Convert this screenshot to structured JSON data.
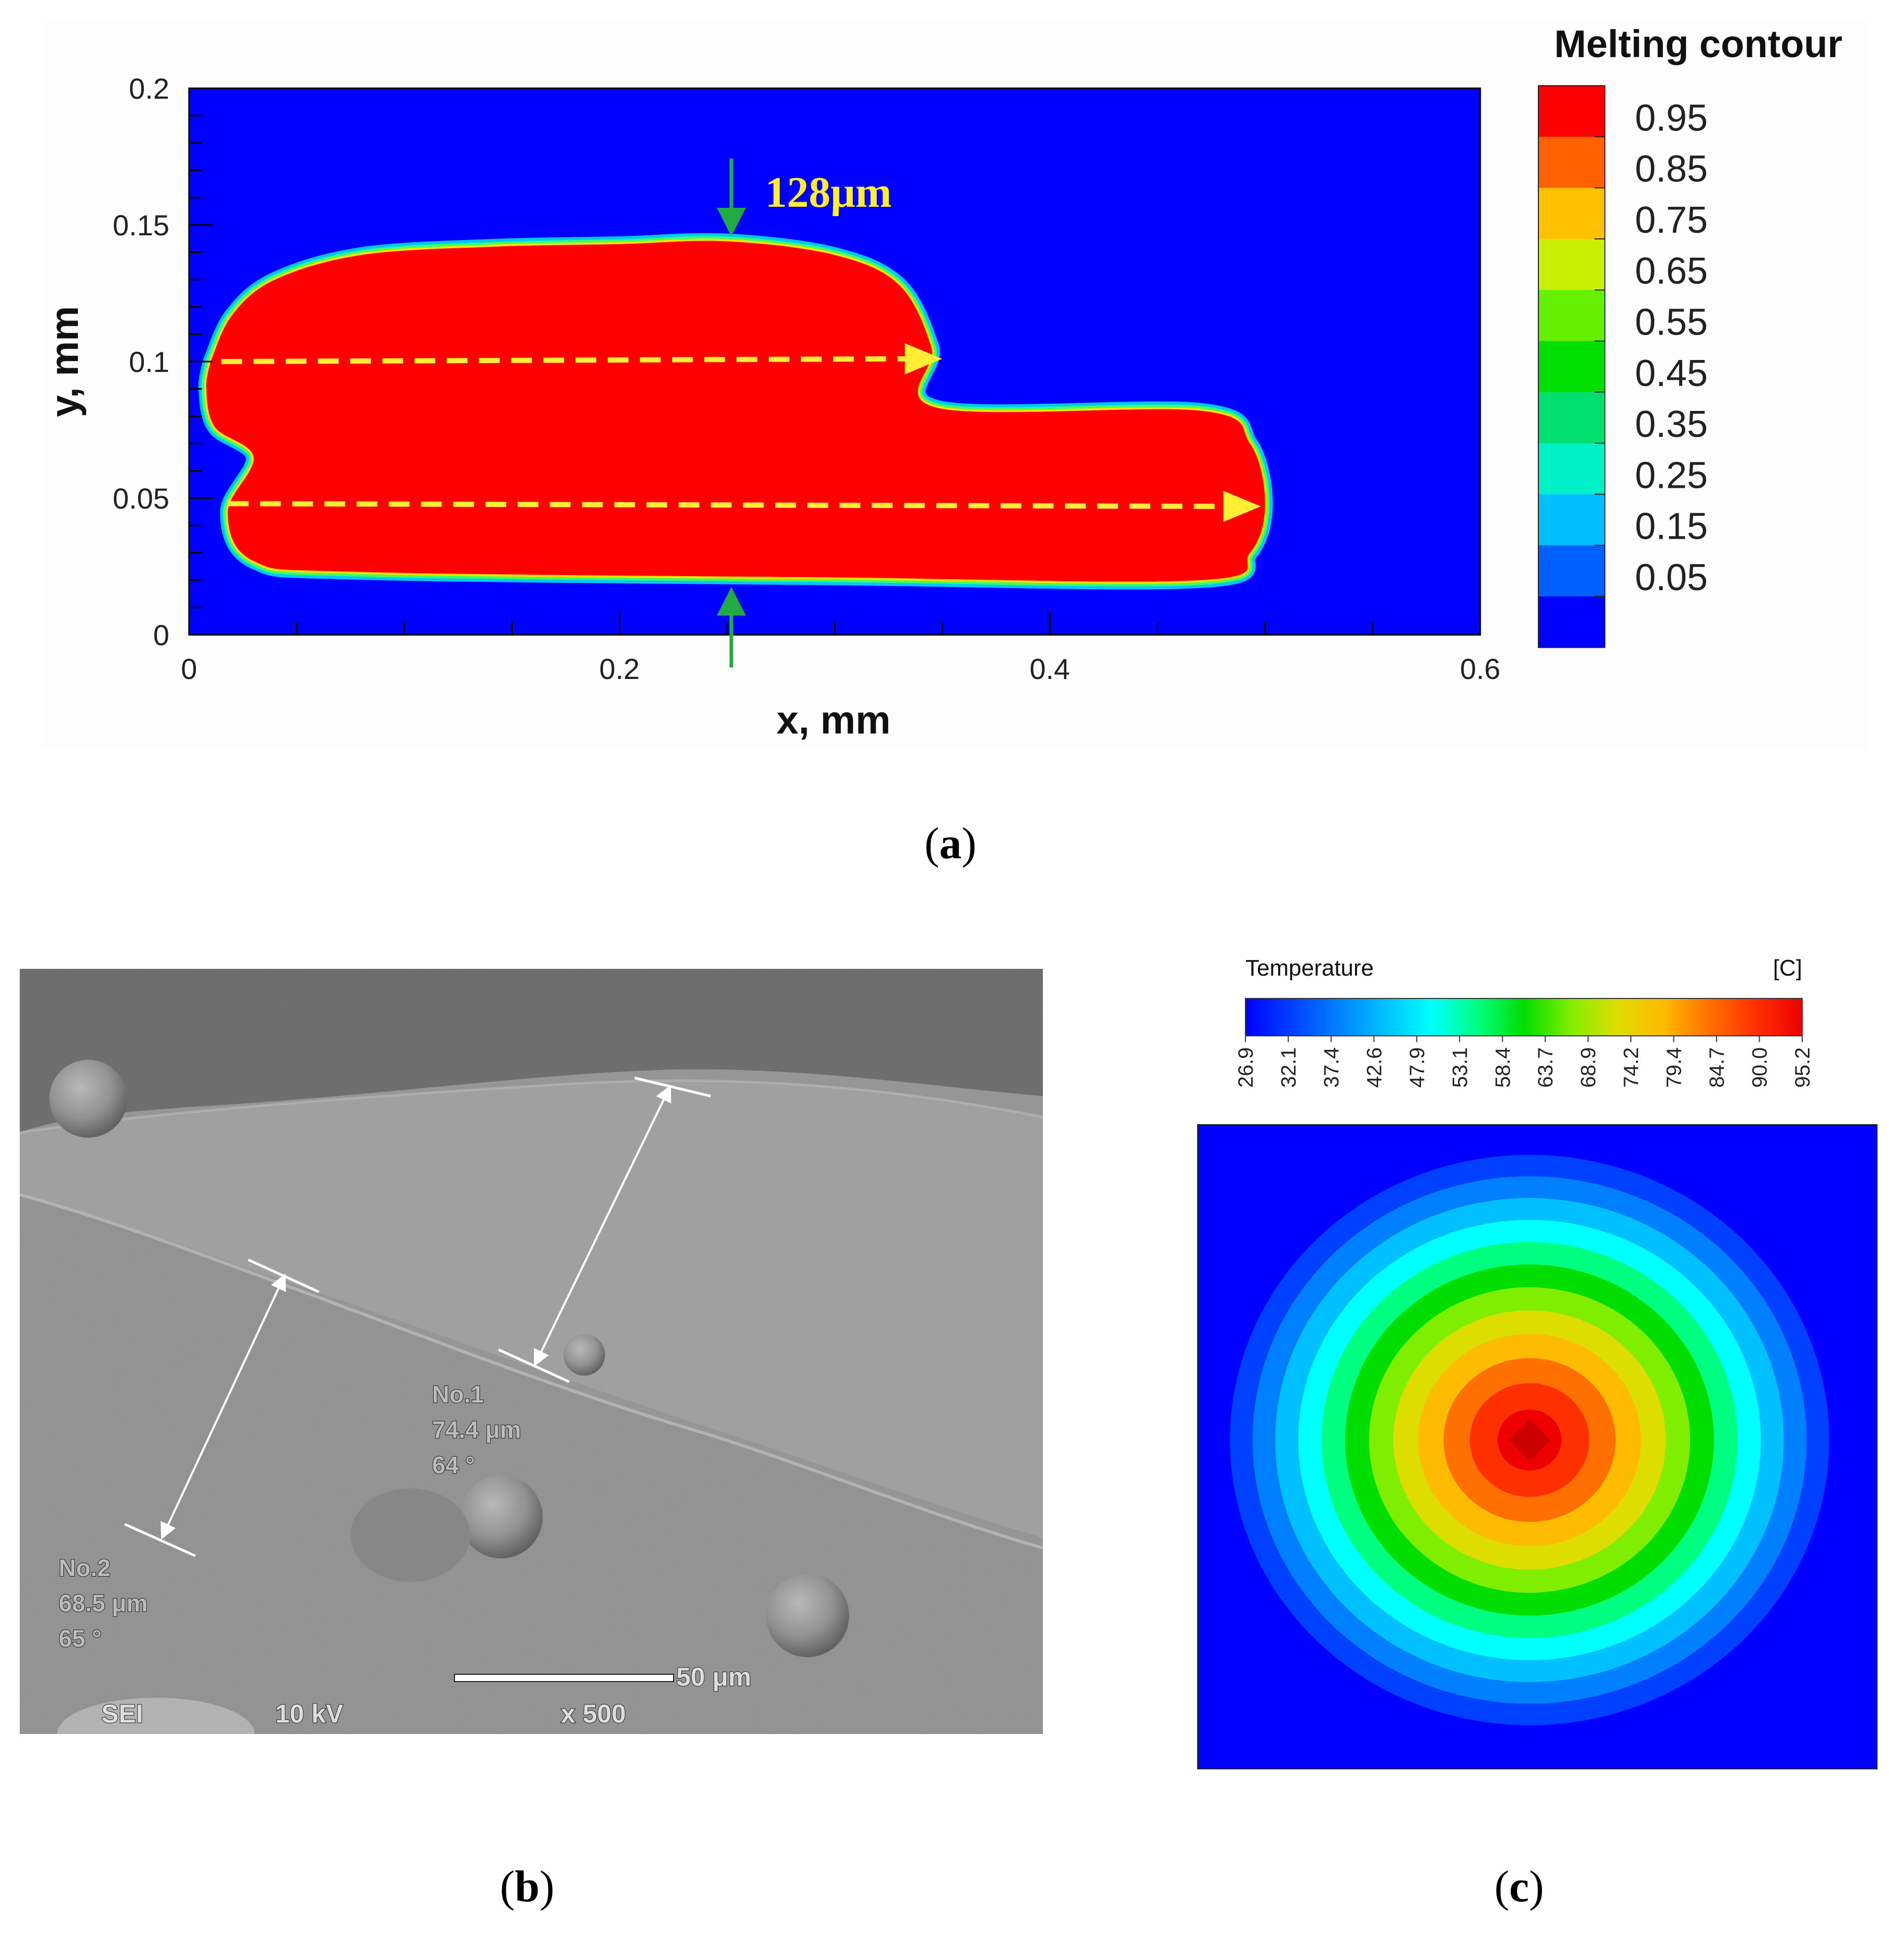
{
  "panel_a": {
    "caption_letter": "a",
    "legend_title": "Melting contour",
    "annotation": "128μm",
    "colors": {
      "background": "#0000ff",
      "melt": "#ff0000",
      "scan_arrow": "#ffee33",
      "marker_arrow": "#22aa44"
    }
  },
  "panel_b": {
    "caption_letter": "b",
    "labels": {
      "m1_name": "No.1",
      "m1_length": "74.4 μm",
      "m1_angle": "64 °",
      "m2_name": "No.2",
      "m2_length": "68.5 μm",
      "m2_angle": "65 °",
      "scale": "50 μm",
      "mode": "SEI",
      "voltage": "10 kV",
      "magnification": "x 500"
    }
  },
  "panel_c": {
    "caption_letter": "c",
    "colorbar_title": "Temperature",
    "colorbar_unit": "[C]"
  },
  "chart_data": [
    {
      "type": "heatmap",
      "title": "",
      "xlabel": "x, mm",
      "ylabel": "y, mm",
      "xlim": [
        0,
        0.6
      ],
      "ylim": [
        0,
        0.2
      ],
      "x_ticks": [
        0,
        0.2,
        0.4,
        0.6
      ],
      "x_tick_labels": [
        "0",
        "0.2",
        "0.4",
        "0.6"
      ],
      "y_ticks": [
        0,
        0.05,
        0.1,
        0.15,
        0.2
      ],
      "y_tick_labels": [
        "0",
        "0.05",
        "0.1",
        "0.15",
        "0.2"
      ],
      "legend_title": "Melting contour",
      "legend_levels": [
        "0.95",
        "0.85",
        "0.75",
        "0.65",
        "0.55",
        "0.45",
        "0.35",
        "0.25",
        "0.15",
        "0.05"
      ],
      "legend_colors": [
        "#ff0000",
        "#ff6000",
        "#ffc000",
        "#c8f000",
        "#64f000",
        "#00e000",
        "#00e070",
        "#00f0c8",
        "#00c0ff",
        "#0060ff",
        "#0000ff"
      ],
      "melt_pool_outline": [
        [
          0.01,
          0.1
        ],
        [
          0.02,
          0.117
        ],
        [
          0.04,
          0.13
        ],
        [
          0.08,
          0.139
        ],
        [
          0.14,
          0.142
        ],
        [
          0.2,
          0.143
        ],
        [
          0.25,
          0.144
        ],
        [
          0.3,
          0.139
        ],
        [
          0.33,
          0.128
        ],
        [
          0.345,
          0.105
        ],
        [
          0.348,
          0.083
        ],
        [
          0.47,
          0.082
        ],
        [
          0.493,
          0.07
        ],
        [
          0.5,
          0.048
        ],
        [
          0.493,
          0.03
        ],
        [
          0.47,
          0.02
        ],
        [
          0.3,
          0.021
        ],
        [
          0.08,
          0.023
        ],
        [
          0.03,
          0.027
        ],
        [
          0.018,
          0.045
        ],
        [
          0.03,
          0.065
        ],
        [
          0.012,
          0.076
        ],
        [
          0.008,
          0.09
        ],
        [
          0.01,
          0.1
        ]
      ],
      "scan_tracks": [
        {
          "from": [
            0.015,
            0.1
          ],
          "to": [
            0.35,
            0.101
          ]
        },
        {
          "from": [
            0.018,
            0.048
          ],
          "to": [
            0.498,
            0.047
          ]
        }
      ],
      "width_marker": {
        "x": 0.252,
        "label": "128μm"
      }
    },
    {
      "type": "heatmap",
      "title": "",
      "colorbar_title": "Temperature",
      "colorbar_unit": "[C]",
      "colorbar_min": 26.9,
      "colorbar_max": 95.2,
      "colorbar_tick_labels": [
        "26.9",
        "32.1",
        "37.4",
        "42.6",
        "47.9",
        "53.1",
        "58.4",
        "63.7",
        "68.9",
        "74.2",
        "79.4",
        "84.7",
        "90.0",
        "95.2"
      ],
      "colorbar_colors": [
        "#0000ff",
        "#0040ff",
        "#0080ff",
        "#00c0ff",
        "#00ffff",
        "#00ff80",
        "#00dd00",
        "#80ee00",
        "#dddd00",
        "#ffbb00",
        "#ff7000",
        "#ff3000",
        "#ee0000"
      ],
      "peak_temperature": 95.2,
      "pattern": "concentric radial decrease from a central hot spot"
    }
  ]
}
